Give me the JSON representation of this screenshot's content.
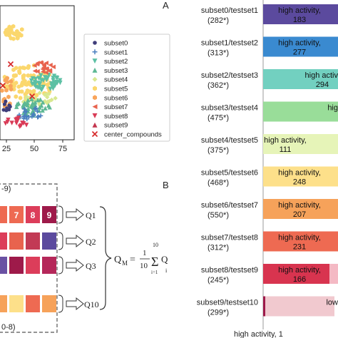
{
  "panels": {
    "a_label": "A",
    "b_label": "B"
  },
  "scatter": {
    "x_ticks": [
      "25",
      "50",
      "75"
    ],
    "legend": [
      {
        "label": "subset0",
        "color": "#3f3d7a",
        "marker": "circle"
      },
      {
        "label": "subset1",
        "color": "#4a7fbf",
        "marker": "plus"
      },
      {
        "label": "subset2",
        "color": "#5cc0a4",
        "marker": "tri-down"
      },
      {
        "label": "subset3",
        "color": "#5db894",
        "marker": "tri-up"
      },
      {
        "label": "subset4",
        "color": "#d8e890",
        "marker": "diamond"
      },
      {
        "label": "subset5",
        "color": "#fbd76d",
        "marker": "hexagon"
      },
      {
        "label": "subset6",
        "color": "#f9a55b",
        "marker": "hexagon"
      },
      {
        "label": "subset7",
        "color": "#e8634e",
        "marker": "tri-left"
      },
      {
        "label": "subset8",
        "color": "#d93b57",
        "marker": "tri-down"
      },
      {
        "label": "subset9",
        "color": "#c4364e",
        "marker": "tri-up"
      },
      {
        "label": "center_compounds",
        "color": "#d62728",
        "marker": "x"
      }
    ]
  },
  "bars": [
    {
      "label": "subset0/testset1",
      "count": "(282*)",
      "text": "high activity,",
      "value": "183",
      "color": "#5b4a9e"
    },
    {
      "label": "subset1/testset2",
      "count": "(313*)",
      "text": "high activity,",
      "value": "277",
      "color": "#3a8ad0"
    },
    {
      "label": "subset2/testset3",
      "count": "(362*)",
      "text": "high activi",
      "value": "294",
      "color": "#72d0c0"
    },
    {
      "label": "subset3/testset4",
      "count": "(475*)",
      "text": "hig",
      "value": "",
      "color": "#99dd99"
    },
    {
      "label": "subset4/testset5",
      "count": "(375*)",
      "text": "high activity,",
      "value": "111",
      "color": "#e6f4b8"
    },
    {
      "label": "subset5/testset6",
      "count": "(468*)",
      "text": "high activity,",
      "value": "248",
      "color": "#fde08a"
    },
    {
      "label": "subset6/testset7",
      "count": "(550*)",
      "text": "high activity,",
      "value": "207",
      "color": "#f6a25a"
    },
    {
      "label": "subset7/testset8",
      "count": "(312*)",
      "text": "high activity,",
      "value": "231",
      "color": "#ee6a52"
    },
    {
      "label": "subset8/testset9",
      "count": "(245*)",
      "text": "high activity,",
      "value": "166",
      "color": "#d8344f"
    },
    {
      "label": "subset9/testset10",
      "count": "(299*)",
      "text": "low",
      "value": "",
      "color": "#f1c9cf"
    }
  ],
  "bar_footer": "high activity, 1",
  "grid_panel": {
    "top_label": "-9)",
    "bottom_label": "0-8)",
    "row1_numbers": [
      "7",
      "8",
      "9"
    ],
    "q_labels": [
      "Q1",
      "Q2",
      "Q3",
      "Q10"
    ],
    "formula": {
      "lhs": "Q",
      "lhs_sub": "M",
      "eq": "=",
      "num": "1",
      "den": "10",
      "sum_top": "10",
      "sum_bot": "i=1",
      "term": "Q",
      "term_sub": "i"
    }
  }
}
